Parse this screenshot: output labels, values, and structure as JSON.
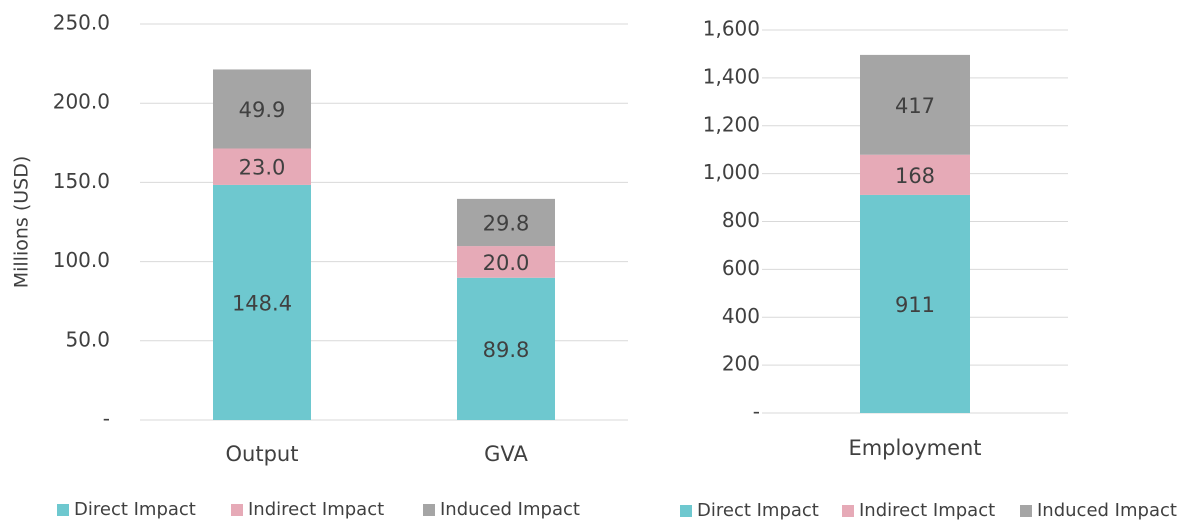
{
  "chart_data": [
    {
      "type": "stacked-bar",
      "ylabel": "Millions (USD)",
      "categories": [
        "Output",
        "GVA"
      ],
      "series": [
        {
          "name": "Direct Impact",
          "color": "#6ec8cf",
          "values": [
            148.4,
            89.8
          ],
          "value_labels": [
            "148.4",
            "89.8"
          ]
        },
        {
          "name": "Indirect Impact",
          "color": "#e6aab7",
          "values": [
            23.0,
            20.0
          ],
          "value_labels": [
            "23.0",
            "20.0"
          ]
        },
        {
          "name": "Induced Impact",
          "color": "#a5a5a5",
          "values": [
            49.9,
            29.8
          ],
          "value_labels": [
            "49.9",
            "29.8"
          ]
        }
      ],
      "ylim": [
        0,
        250
      ],
      "yticks": [
        {
          "value": 0,
          "label": "-"
        },
        {
          "value": 50,
          "label": "50.0"
        },
        {
          "value": 100,
          "label": "100.0"
        },
        {
          "value": 150,
          "label": "150.0"
        },
        {
          "value": 200,
          "label": "200.0"
        },
        {
          "value": 250,
          "label": "250.0"
        }
      ],
      "grid": true,
      "legend": "bottom"
    },
    {
      "type": "stacked-bar",
      "categories": [
        "Employment"
      ],
      "series": [
        {
          "name": "Direct Impact",
          "color": "#6ec8cf",
          "values": [
            911
          ]
        },
        {
          "name": "Indirect Impact",
          "color": "#e6aab7",
          "values": [
            168
          ]
        },
        {
          "name": "Induced Impact",
          "color": "#a5a5a5",
          "values": [
            417
          ]
        }
      ],
      "ylim": [
        0,
        1600
      ],
      "yticks": [
        {
          "value": 0,
          "label": "-"
        },
        200,
        400,
        600,
        800,
        {
          "value": 1000,
          "label": "1,000"
        },
        {
          "value": 1200,
          "label": "1,200"
        },
        {
          "value": 1400,
          "label": "1,400"
        },
        {
          "value": 1600,
          "label": "1,600"
        }
      ],
      "grid": true,
      "legend": "bottom"
    }
  ]
}
